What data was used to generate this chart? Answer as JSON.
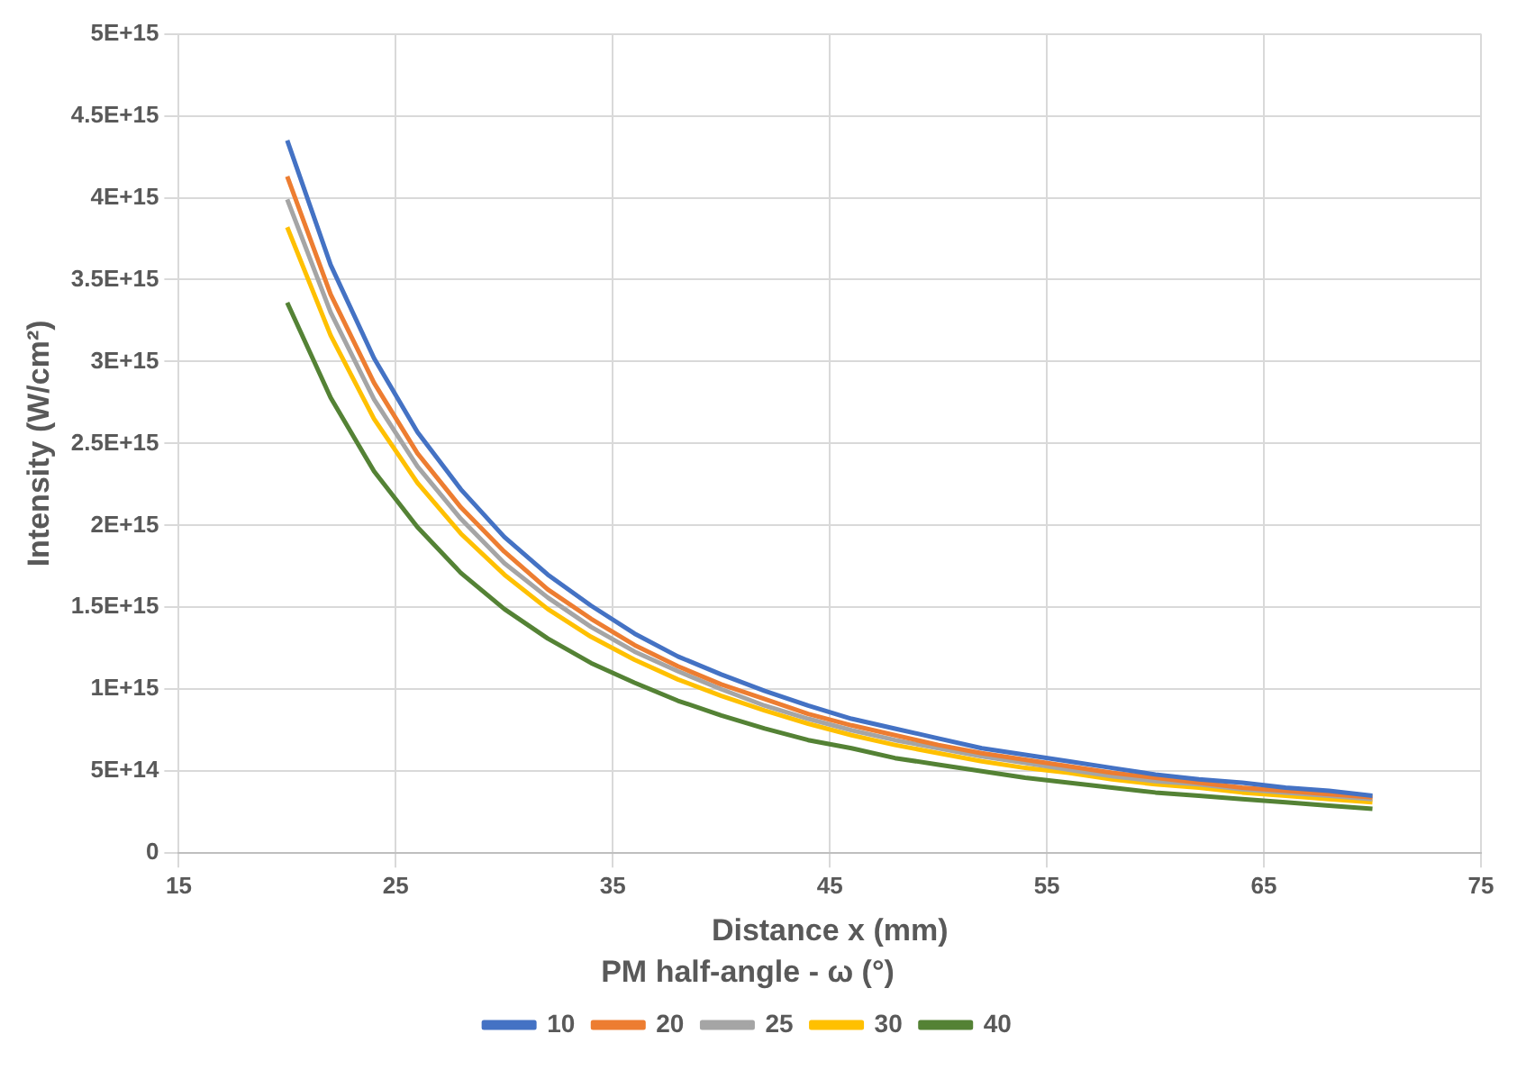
{
  "chart_data": {
    "type": "line",
    "xlabel": "Distance x (mm)",
    "ylabel": "Intensity (W/cm²)",
    "legend_title": "PM half-angle - ω (°)",
    "legend": "bottom",
    "grid": true,
    "marker": "none",
    "line_style": "solid",
    "x": [
      20,
      22,
      24,
      26,
      28,
      30,
      32,
      34,
      36,
      38,
      40,
      42,
      44,
      46,
      48,
      50,
      52,
      54,
      56,
      58,
      60,
      62,
      64,
      66,
      68,
      70
    ],
    "xlim": [
      15,
      75
    ],
    "xticks": [
      15,
      25,
      35,
      45,
      55,
      65,
      75
    ],
    "ylim": [
      0,
      5000000000000000.0
    ],
    "yticks": [
      0,
      {
        "value": 500000000000000.0,
        "label": "5E+14"
      },
      {
        "value": 1000000000000000.0,
        "label": "1E+15"
      },
      {
        "value": 1500000000000000.0,
        "label": "1.5E+15"
      },
      {
        "value": 2000000000000000.0,
        "label": "2E+15"
      },
      {
        "value": 2500000000000000.0,
        "label": "2.5E+15"
      },
      {
        "value": 3000000000000000.0,
        "label": "3E+15"
      },
      {
        "value": 3500000000000000.0,
        "label": "3.5E+15"
      },
      {
        "value": 4000000000000000.0,
        "label": "4E+15"
      },
      {
        "value": 4500000000000000.0,
        "label": "4.5E+15"
      },
      {
        "value": 5000000000000000.0,
        "label": "5E+15"
      }
    ],
    "series": [
      {
        "name": "10",
        "color": "#4472c4",
        "values": [
          4350000000000000.0,
          3590000000000000.0,
          3020000000000000.0,
          2570000000000000.0,
          2220000000000000.0,
          1930000000000000.0,
          1700000000000000.0,
          1510000000000000.0,
          1340000000000000.0,
          1200000000000000.0,
          1090000000000000.0,
          990000000000000.0,
          900000000000000.0,
          820000000000000.0,
          760000000000000.0,
          700000000000000.0,
          640000000000000.0,
          600000000000000.0,
          560000000000000.0,
          520000000000000.0,
          480000000000000.0,
          450000000000000.0,
          430000000000000.0,
          400000000000000.0,
          380000000000000.0,
          350000000000000.0
        ]
      },
      {
        "name": "20",
        "color": "#ed7d31",
        "values": [
          4130000000000000.0,
          3410000000000000.0,
          2870000000000000.0,
          2440000000000000.0,
          2110000000000000.0,
          1840000000000000.0,
          1610000000000000.0,
          1430000000000000.0,
          1270000000000000.0,
          1140000000000000.0,
          1030000000000000.0,
          940000000000000.0,
          850000000000000.0,
          780000000000000.0,
          720000000000000.0,
          660000000000000.0,
          610000000000000.0,
          570000000000000.0,
          530000000000000.0,
          490000000000000.0,
          460000000000000.0,
          430000000000000.0,
          400000000000000.0,
          380000000000000.0,
          360000000000000.0,
          340000000000000.0
        ]
      },
      {
        "name": "25",
        "color": "#a5a5a5",
        "values": [
          3990000000000000.0,
          3300000000000000.0,
          2770000000000000.0,
          2360000000000000.0,
          2040000000000000.0,
          1770000000000000.0,
          1560000000000000.0,
          1380000000000000.0,
          1230000000000000.0,
          1110000000000000.0,
          1000000000000000.0,
          900000000000000.0,
          820000000000000.0,
          750000000000000.0,
          690000000000000.0,
          640000000000000.0,
          590000000000000.0,
          550000000000000.0,
          510000000000000.0,
          470000000000000.0,
          440000000000000.0,
          420000000000000.0,
          390000000000000.0,
          370000000000000.0,
          350000000000000.0,
          330000000000000.0
        ]
      },
      {
        "name": "30",
        "color": "#ffc000",
        "values": [
          3820000000000000.0,
          3160000000000000.0,
          2650000000000000.0,
          2260000000000000.0,
          1950000000000000.0,
          1700000000000000.0,
          1490000000000000.0,
          1320000000000000.0,
          1180000000000000.0,
          1060000000000000.0,
          960000000000000.0,
          870000000000000.0,
          790000000000000.0,
          720000000000000.0,
          660000000000000.0,
          610000000000000.0,
          560000000000000.0,
          520000000000000.0,
          490000000000000.0,
          450000000000000.0,
          420000000000000.0,
          400000000000000.0,
          370000000000000.0,
          350000000000000.0,
          330000000000000.0,
          310000000000000.0
        ]
      },
      {
        "name": "40",
        "color": "#548235",
        "values": [
          3360000000000000.0,
          2780000000000000.0,
          2330000000000000.0,
          1990000000000000.0,
          1710000000000000.0,
          1490000000000000.0,
          1310000000000000.0,
          1160000000000000.0,
          1040000000000000.0,
          930000000000000.0,
          840000000000000.0,
          760000000000000.0,
          690000000000000.0,
          640000000000000.0,
          580000000000000.0,
          540000000000000.0,
          500000000000000.0,
          460000000000000.0,
          430000000000000.0,
          400000000000000.0,
          370000000000000.0,
          350000000000000.0,
          330000000000000.0,
          310000000000000.0,
          290000000000000.0,
          270000000000000.0
        ]
      }
    ]
  }
}
